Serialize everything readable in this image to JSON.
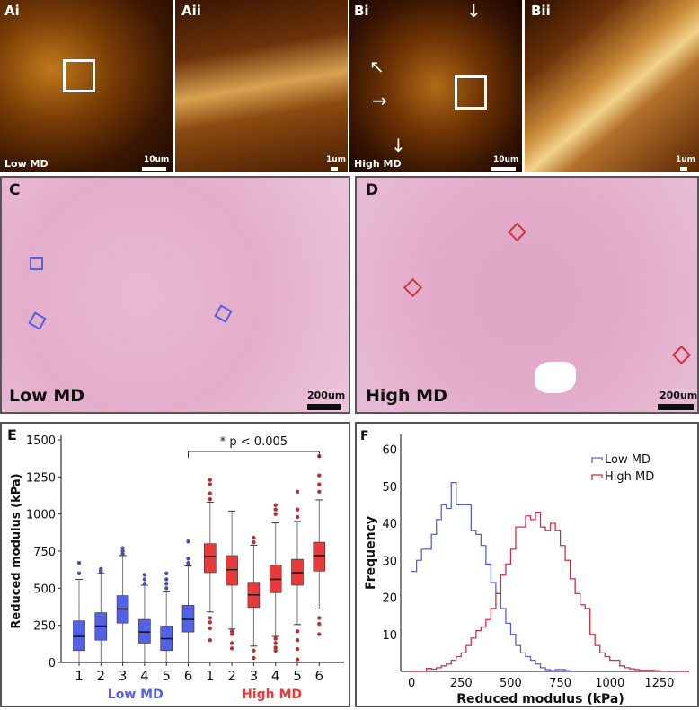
{
  "panels": {
    "Ai": {
      "label": "Ai",
      "caption": "Low MD",
      "scale": "10um"
    },
    "Aii": {
      "label": "Aii",
      "scale": "1um"
    },
    "Bi": {
      "label": "Bi",
      "caption": "High MD",
      "scale": "10um"
    },
    "Bii": {
      "label": "Bii",
      "scale": "1um"
    },
    "C": {
      "label": "C",
      "caption": "Low MD",
      "scale": "200um",
      "marker_color": "#5560e0"
    },
    "D": {
      "label": "D",
      "caption": "High MD",
      "scale": "200um",
      "marker_color": "#e03030"
    },
    "E": {
      "label": "E"
    },
    "F": {
      "label": "F"
    }
  },
  "chart_data": [
    {
      "type": "box",
      "panel": "E",
      "title": "",
      "xlabel": "",
      "ylabel": "Reduced modulus (kPa)",
      "ylim": [
        0,
        1500
      ],
      "yticks": [
        0,
        250,
        500,
        750,
        1000,
        1250,
        1500
      ],
      "annotation": "* p < 0.005",
      "groups": [
        {
          "name": "Low MD",
          "color": "#5560e8",
          "categories": [
            "1",
            "2",
            "3",
            "4",
            "5",
            "6"
          ],
          "boxes": [
            {
              "median": 175,
              "q1": 80,
              "q3": 280,
              "whisker_low": 0,
              "whisker_high": 560,
              "outliers": [
                600,
                670
              ]
            },
            {
              "median": 245,
              "q1": 150,
              "q3": 335,
              "whisker_low": 0,
              "whisker_high": 600,
              "outliers": [
                610,
                620,
                630
              ]
            },
            {
              "median": 360,
              "q1": 265,
              "q3": 450,
              "whisker_low": 0,
              "whisker_high": 720,
              "outliers": [
                730,
                750,
                770
              ]
            },
            {
              "median": 205,
              "q1": 130,
              "q3": 290,
              "whisker_low": 0,
              "whisker_high": 520,
              "outliers": [
                530,
                560,
                590
              ]
            },
            {
              "median": 160,
              "q1": 80,
              "q3": 245,
              "whisker_low": 0,
              "whisker_high": 480,
              "outliers": [
                500,
                530,
                560,
                600
              ]
            },
            {
              "median": 290,
              "q1": 205,
              "q3": 385,
              "whisker_low": 0,
              "whisker_high": 650,
              "outliers": [
                670,
                700,
                815
              ]
            }
          ]
        },
        {
          "name": "High MD",
          "color": "#e83a3a",
          "categories": [
            "1",
            "2",
            "3",
            "4",
            "5",
            "6"
          ],
          "boxes": [
            {
              "median": 715,
              "q1": 605,
              "q3": 800,
              "whisker_low": 340,
              "whisker_high": 1080,
              "outliers": [
                150,
                230,
                270,
                300,
                1100,
                1140,
                1200,
                1230
              ]
            },
            {
              "median": 625,
              "q1": 520,
              "q3": 720,
              "whisker_low": 225,
              "whisker_high": 1020,
              "outliers": [
                95,
                130,
                190,
                210
              ]
            },
            {
              "median": 455,
              "q1": 370,
              "q3": 540,
              "whisker_low": 110,
              "whisker_high": 790,
              "outliers": [
                30,
                80,
                810,
                840
              ]
            },
            {
              "median": 560,
              "q1": 470,
              "q3": 655,
              "whisker_low": 175,
              "whisker_high": 940,
              "outliers": [
                80,
                100,
                130,
                160,
                1000,
                1030,
                1060
              ]
            },
            {
              "median": 605,
              "q1": 520,
              "q3": 695,
              "whisker_low": 255,
              "whisker_high": 950,
              "outliers": [
                20,
                90,
                150,
                210,
                980,
                1030,
                1150
              ]
            },
            {
              "median": 720,
              "q1": 615,
              "q3": 810,
              "whisker_low": 360,
              "whisker_high": 1095,
              "outliers": [
                190,
                260,
                300,
                1150,
                1200,
                1260,
                1390
              ]
            }
          ]
        }
      ],
      "xgroup_labels": [
        "Low MD",
        "High MD"
      ]
    },
    {
      "type": "histogram",
      "panel": "F",
      "title": "",
      "xlabel": "Reduced modulus (kPa)",
      "ylabel": "Frequency",
      "xlim": [
        -100,
        1400
      ],
      "ylim": [
        0,
        65
      ],
      "xticks": [
        0,
        250,
        500,
        750,
        1000,
        1250
      ],
      "yticks": [
        10,
        20,
        30,
        40,
        50,
        60
      ],
      "legend_position": "top-right",
      "bin_width": 25,
      "series": [
        {
          "name": "Low MD",
          "color": "#5560e0",
          "x": [
            0,
            25,
            50,
            75,
            100,
            125,
            150,
            175,
            200,
            225,
            250,
            275,
            300,
            325,
            350,
            375,
            400,
            425,
            450,
            475,
            500,
            525,
            550,
            575,
            600,
            625,
            650,
            675,
            700,
            725,
            750,
            775,
            800
          ],
          "values": [
            27,
            30,
            33,
            33,
            37,
            41,
            45,
            44,
            51,
            45,
            45,
            45,
            38,
            37,
            34,
            29,
            24,
            21,
            17,
            13,
            10,
            7,
            5,
            4,
            3,
            2,
            1,
            0.5,
            0.2,
            0.5,
            0.5,
            0.2,
            0
          ]
        },
        {
          "name": "High MD",
          "color": "#d03040",
          "x": [
            0,
            25,
            50,
            75,
            100,
            125,
            150,
            175,
            200,
            225,
            250,
            275,
            300,
            325,
            350,
            375,
            400,
            425,
            450,
            475,
            500,
            525,
            550,
            575,
            600,
            625,
            650,
            675,
            700,
            725,
            750,
            775,
            800,
            825,
            850,
            875,
            900,
            925,
            950,
            975,
            1000,
            1025,
            1050,
            1075,
            1100,
            1125,
            1150,
            1175,
            1200,
            1225,
            1250,
            1275,
            1300,
            1325,
            1350,
            1375
          ],
          "values": [
            0,
            0,
            0,
            0.8,
            0.6,
            1,
            1.5,
            2,
            3,
            4,
            5,
            7,
            9,
            11,
            12,
            14,
            17,
            21,
            26,
            29,
            33,
            39,
            39,
            42,
            41,
            43,
            39,
            38,
            40,
            38,
            34,
            30,
            25,
            21,
            18,
            17,
            10,
            7,
            5,
            4,
            3,
            3,
            1.5,
            1,
            0.7,
            0.5,
            0.3,
            0.3,
            0.3,
            0.2,
            0.1,
            0.1,
            0,
            0,
            0,
            0
          ]
        }
      ]
    }
  ]
}
